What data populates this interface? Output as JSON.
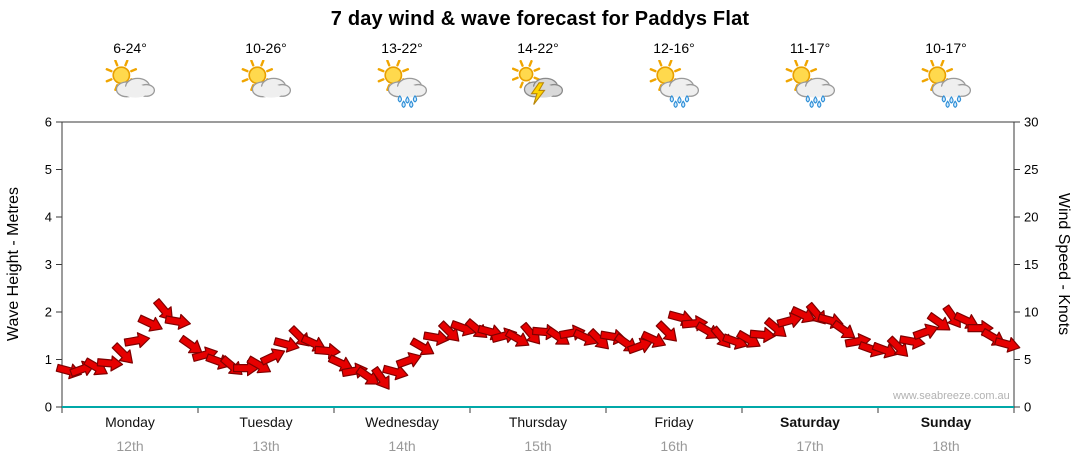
{
  "title": "7 day wind & wave forecast for Paddys Flat",
  "watermark": "www.seabreeze.com.au",
  "days": [
    {
      "name": "Monday",
      "date": "12th",
      "temp": "6-24°",
      "icon": "partly-cloudy",
      "bold": false
    },
    {
      "name": "Tuesday",
      "date": "13th",
      "temp": "10-26°",
      "icon": "partly-cloudy",
      "bold": false
    },
    {
      "name": "Wednesday",
      "date": "14th",
      "temp": "13-22°",
      "icon": "showers",
      "bold": false
    },
    {
      "name": "Thursday",
      "date": "15th",
      "temp": "14-22°",
      "icon": "storm",
      "bold": false
    },
    {
      "name": "Friday",
      "date": "16th",
      "temp": "12-16°",
      "icon": "showers",
      "bold": false
    },
    {
      "name": "Saturday",
      "date": "17th",
      "temp": "11-17°",
      "icon": "showers",
      "bold": true
    },
    {
      "name": "Sunday",
      "date": "18th",
      "temp": "10-17°",
      "icon": "showers",
      "bold": true
    }
  ],
  "axes": {
    "left_label": "Wave Height - Metres",
    "right_label": "Wind Speed - Knots",
    "left_ticks": [
      0,
      1,
      2,
      3,
      4,
      5,
      6
    ],
    "right_ticks": [
      0,
      5,
      10,
      15,
      20,
      25,
      30
    ]
  },
  "colors": {
    "arrow": "#e60000",
    "arrow_outline": "#7f0000",
    "baseline": "#00a8a8",
    "axis": "#3a3a3a"
  },
  "chart_data": {
    "type": "wind-arrow-series",
    "title": "7 day wind & wave forecast for Paddys Flat",
    "note": "Red arrows plot forecast wind speed in knots on the right axis (equivalently knots/5 on the Wave Height metres axis); arrow rotation shows wind direction.",
    "y_axis_left": {
      "label": "Wave Height - Metres",
      "range": [
        0,
        6
      ]
    },
    "y_axis_right": {
      "label": "Wind Speed - Knots",
      "range": [
        0,
        30
      ]
    },
    "samples_per_day": 10,
    "series": [
      {
        "day": "Monday 12th",
        "knots": [
          3.8,
          4.0,
          4.2,
          4.6,
          5.6,
          7.0,
          8.8,
          10.2,
          9.0,
          6.5
        ],
        "dir_deg": [
          15,
          -20,
          30,
          5,
          45,
          -10,
          25,
          50,
          10,
          35
        ]
      },
      {
        "day": "Tuesday 13th",
        "knots": [
          5.5,
          4.8,
          4.3,
          4.1,
          4.4,
          5.3,
          6.6,
          7.4,
          6.7,
          5.9
        ],
        "dir_deg": [
          -15,
          20,
          40,
          0,
          30,
          -25,
          15,
          45,
          25,
          5
        ]
      },
      {
        "day": "Wednesday 14th",
        "knots": [
          4.6,
          3.8,
          3.2,
          3.0,
          3.7,
          4.9,
          6.3,
          7.3,
          7.9,
          8.3
        ],
        "dir_deg": [
          25,
          -10,
          35,
          55,
          15,
          -20,
          30,
          10,
          45,
          20
        ]
      },
      {
        "day": "Thursday 15th",
        "knots": [
          8.2,
          7.9,
          7.5,
          7.2,
          7.7,
          7.9,
          7.4,
          7.8,
          7.3,
          7.1
        ],
        "dir_deg": [
          40,
          15,
          -15,
          30,
          50,
          5,
          35,
          -10,
          25,
          45
        ]
      },
      {
        "day": "Friday 16th",
        "knots": [
          7.4,
          6.7,
          6.4,
          7.1,
          7.9,
          9.4,
          8.8,
          8.0,
          7.3,
          6.9
        ],
        "dir_deg": [
          10,
          35,
          -20,
          25,
          45,
          15,
          -5,
          30,
          50,
          20
        ]
      },
      {
        "day": "Saturday 17th",
        "knots": [
          7.1,
          7.6,
          8.3,
          9.1,
          9.7,
          9.8,
          9.1,
          8.1,
          6.9,
          6.1
        ],
        "dir_deg": [
          30,
          5,
          40,
          -15,
          25,
          50,
          15,
          35,
          -10,
          20
        ]
      },
      {
        "day": "Sunday 18th",
        "knots": [
          6.0,
          6.3,
          6.9,
          7.9,
          8.9,
          9.5,
          9.1,
          8.3,
          7.3,
          6.6
        ],
        "dir_deg": [
          20,
          45,
          10,
          -20,
          35,
          55,
          25,
          0,
          30,
          15
        ]
      }
    ]
  }
}
